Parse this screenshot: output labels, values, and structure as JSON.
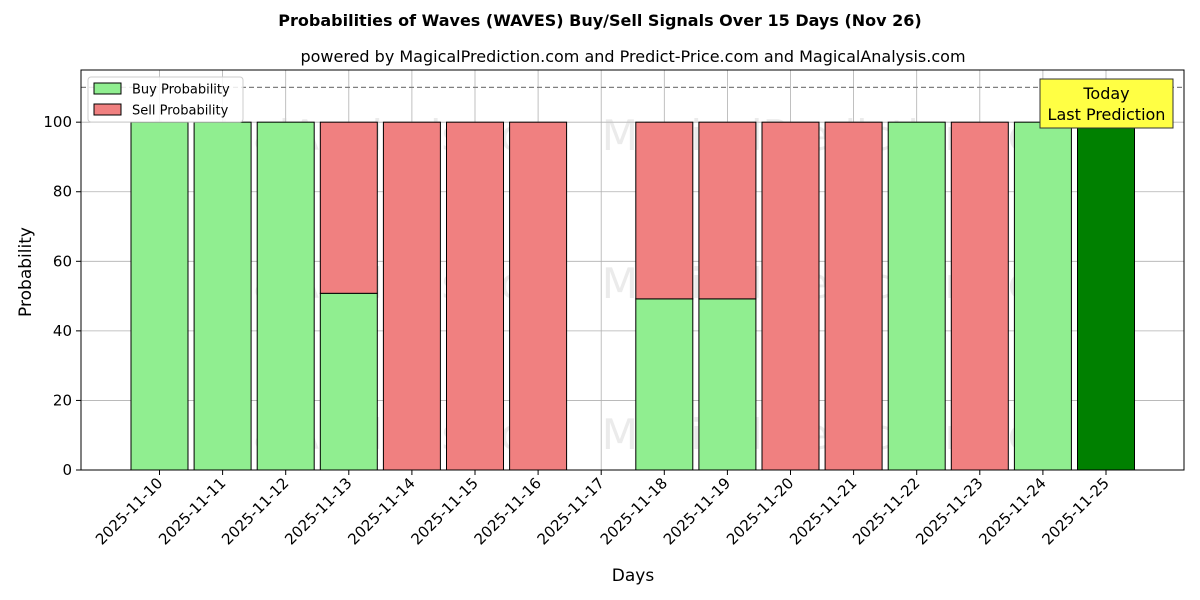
{
  "chart_data": {
    "type": "bar",
    "stacked": true,
    "title": "Probabilities of Waves (WAVES) Buy/Sell Signals Over 15 Days (Nov 26)",
    "subtitle": "powered by MagicalPrediction.com and Predict-Price.com and MagicalAnalysis.com",
    "xlabel": "Days",
    "ylabel": "Probability",
    "ylim": [
      0,
      115
    ],
    "yticks": [
      0,
      20,
      40,
      60,
      80,
      100
    ],
    "grid": true,
    "legend_position": "top-left",
    "reference_line": 110,
    "categories": [
      "2025-11-10",
      "2025-11-11",
      "2025-11-12",
      "2025-11-13",
      "2025-11-14",
      "2025-11-15",
      "2025-11-16",
      "2025-11-17",
      "2025-11-18",
      "2025-11-19",
      "2025-11-20",
      "2025-11-21",
      "2025-11-22",
      "2025-11-23",
      "2025-11-24",
      "2025-11-25"
    ],
    "series": [
      {
        "name": "Buy Probability",
        "color": "#90ee90",
        "values": [
          100,
          100,
          100,
          50.8,
          0,
          0,
          0,
          null,
          49.2,
          49.2,
          0,
          0,
          100,
          0,
          100,
          100
        ]
      },
      {
        "name": "Sell Probability",
        "color": "#f08080",
        "values": [
          0,
          0,
          0,
          49.2,
          100,
          100,
          100,
          null,
          50.8,
          50.8,
          100,
          100,
          0,
          100,
          0,
          0
        ]
      }
    ],
    "highlight": {
      "index": 15,
      "color": "#008000"
    },
    "annotation": {
      "line1": "Today",
      "line2": "Last Prediction",
      "color": "#ffff44"
    },
    "watermarks": [
      "MagicalAnalysis.com",
      "MagicalPrediction.com"
    ]
  }
}
